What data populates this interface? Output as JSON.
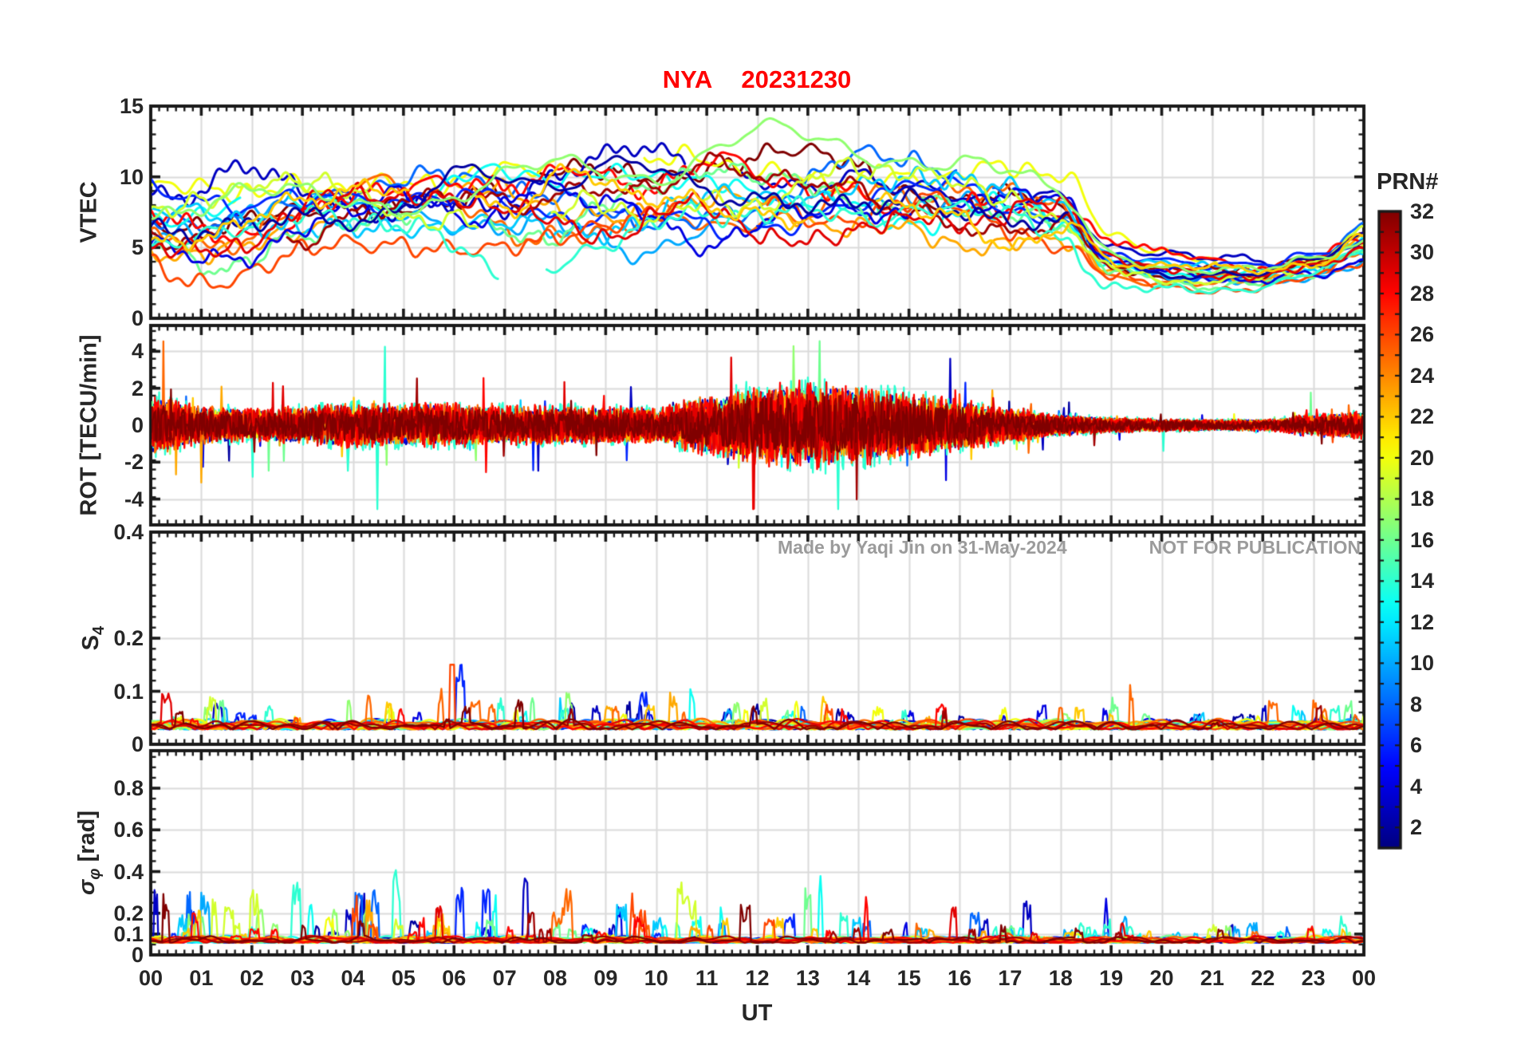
{
  "title": {
    "text": "NYA  20231230",
    "color": "#FF0000"
  },
  "watermark": {
    "made_by": "Made by Yaqi Jin on 31-May-2024",
    "notice": "NOT FOR PUBLICATION",
    "color": "#9B9B9B"
  },
  "axes": {
    "xlabel": "UT",
    "x_tick_labels": [
      "00",
      "01",
      "02",
      "03",
      "04",
      "05",
      "06",
      "07",
      "08",
      "09",
      "10",
      "11",
      "12",
      "13",
      "14",
      "15",
      "16",
      "17",
      "18",
      "19",
      "20",
      "21",
      "22",
      "23",
      "00"
    ],
    "x_range_hours": [
      0,
      24
    ]
  },
  "colorbar": {
    "title": "PRN#",
    "min": 1,
    "max": 32,
    "tick_labels": [
      2,
      4,
      6,
      8,
      10,
      12,
      14,
      16,
      18,
      20,
      22,
      24,
      26,
      28,
      30,
      32
    ],
    "colormap": "jet"
  },
  "style": {
    "axis_color": "#1A1A1A",
    "grid_color": "#DBDBDB",
    "tick_label_color": "#262626",
    "title_color": "#FF0000",
    "watermark_color": "#9B9B9B"
  },
  "series_prns": [
    2,
    3,
    4,
    6,
    8,
    10,
    11,
    13,
    14,
    16,
    17,
    19,
    20,
    22,
    23,
    25,
    26,
    28,
    29,
    31,
    32
  ],
  "chart_data": [
    {
      "type": "line",
      "panel": "VTEC",
      "ylabel": "VTEC",
      "ylim": [
        0,
        15
      ],
      "yticks": [
        0,
        5,
        10,
        15
      ],
      "ytick_labels": [
        "0",
        "5",
        "10",
        "15"
      ],
      "grid_yticks": [
        5,
        10
      ],
      "minor_step": 1,
      "description": "Vertical TEC of ~20 GPS satellites, wandering 5-12 TECU through the day with peaks clipped at 15 near 11:40 and 13:30-15:30; all tracks drop to 2.5-4.5 after 19 UT, staying flat near 3 during 20-23 UT and rising again toward 24 UT",
      "hourly_mean": [
        7.3,
        7.2,
        7.3,
        7.6,
        8.0,
        8.3,
        8.2,
        8.0,
        8.0,
        8.3,
        8.6,
        8.8,
        8.7,
        8.8,
        9.2,
        9.0,
        8.4,
        8.0,
        7.2,
        4.2,
        3.6,
        3.3,
        3.2,
        3.8,
        5.2
      ],
      "hourly_spread": [
        1,
        1,
        1,
        1,
        1,
        1,
        1,
        1,
        1,
        1,
        1,
        1,
        1,
        1,
        1,
        1,
        1,
        0.95,
        0.85,
        0.5,
        0.35,
        0.3,
        0.28,
        0.35,
        0.5
      ]
    },
    {
      "type": "line",
      "panel": "ROT",
      "ylabel": "ROT [TECU/min]",
      "ylim": [
        -5.4,
        5.4
      ],
      "yticks": [
        -4,
        -2,
        0,
        2,
        4
      ],
      "ytick_labels": [
        "-4",
        "-2",
        "0",
        "2",
        "4"
      ],
      "grid_yticks": [
        -4,
        -2,
        0,
        2,
        4
      ],
      "minor_step": 0.5,
      "description": "Rate of TEC change, zero-mean spiky noise; typical amplitude ±1-2 TECU/min, isolated spikes to ±4 near 00:45, 05:30 and 12-15 UT; strongest activity 11-15 UT dominated by high-PRN (dark red) satellites; quiet 18-23 UT",
      "hourly_amp": [
        1.5,
        1.0,
        0.85,
        0.95,
        1.15,
        1.1,
        1.1,
        1.0,
        1.0,
        0.95,
        0.9,
        1.5,
        2.0,
        2.2,
        2.0,
        1.7,
        1.3,
        0.9,
        0.55,
        0.4,
        0.32,
        0.3,
        0.3,
        0.55,
        0.7
      ]
    },
    {
      "type": "line",
      "panel": "S4",
      "ylabel_main": "S",
      "ylabel_sub": "4",
      "ylim": [
        0,
        0.4
      ],
      "yticks": [
        0,
        0.1,
        0.2,
        0.4
      ],
      "ytick_labels": [
        "0",
        "0.1",
        "0.2",
        "0.4"
      ],
      "grid_yticks": [
        0.1,
        0.2
      ],
      "minor_step": 0.02,
      "description": "Amplitude scintillation index; baseline 0.02-0.06 for all satellites with occasional bursts to 0.1-0.12 (e.g. ~04:10, 05:50-06:20, 08:00, 11:30, 13:50, 15:00, 19:50)",
      "hourly_amp": [
        1.0,
        1.1,
        1.0,
        1.0,
        1.5,
        1.3,
        1.6,
        1.2,
        1.3,
        1.0,
        1.0,
        1.4,
        1.2,
        1.4,
        1.2,
        1.5,
        1.0,
        1.1,
        0.8,
        1.2,
        0.8,
        0.7,
        0.7,
        0.8,
        0.8
      ]
    },
    {
      "type": "line",
      "panel": "sigma_phi",
      "ylabel_sigma": "σ",
      "ylabel_sub": "φ",
      "ylabel_rest": " [rad]",
      "ylim": [
        0,
        0.98
      ],
      "yticks": [
        0,
        0.1,
        0.2,
        0.4,
        0.6,
        0.8
      ],
      "ytick_labels": [
        "0",
        "0.1",
        "0.2",
        "0.4",
        "0.6",
        "0.8"
      ],
      "grid_yticks": [
        0.1,
        0.2,
        0.4,
        0.6,
        0.8
      ],
      "minor_step": 0.05,
      "description": "Phase scintillation index; baseline 0.05-0.12 rad with frequent bursts 0.2-0.45 rad between 04-16 UT (red/orange spikes to ~0.45 near 04:30, 06:00-06:30, 08:10, 14:30; cyan spike ~0.5 at 13:05), quiet after 17 UT",
      "hourly_amp": [
        1.2,
        1.1,
        0.7,
        0.8,
        1.5,
        1.4,
        1.7,
        1.1,
        1.4,
        0.9,
        0.8,
        1.3,
        1.6,
        1.7,
        1.5,
        1.2,
        0.9,
        0.7,
        0.55,
        0.85,
        0.45,
        0.4,
        0.4,
        0.5,
        0.55
      ]
    }
  ]
}
